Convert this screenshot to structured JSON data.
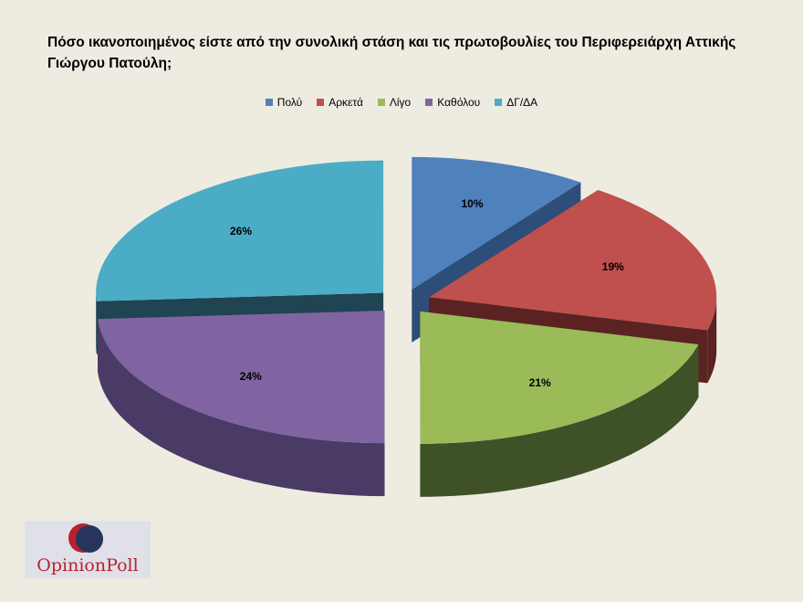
{
  "chart_data": {
    "type": "pie",
    "title": "Πόσο ικανοποιημένος είστε από την συνολική στάση και τις πρωτοβουλίες του Περιφερειάρχη Αττικής Γιώργου Πατούλη;",
    "categories": [
      "Πολύ",
      "Αρκετά",
      "Λίγο",
      "Καθόλου",
      "ΔΓ/ΔΑ"
    ],
    "values": [
      10,
      19,
      21,
      24,
      26
    ],
    "value_labels": [
      "10%",
      "19%",
      "21%",
      "24%",
      "26%"
    ],
    "colors": [
      "#4f81bd",
      "#c0504d",
      "#9bbb59",
      "#8064a2",
      "#4bacc6"
    ],
    "side_colors": [
      "#2c4e78",
      "#5a2220",
      "#3f5127",
      "#4a3a66",
      "#1f4452"
    ],
    "legend_position": "top",
    "exploded": true,
    "three_d": true
  },
  "logo": {
    "text": "OpinionPoll"
  }
}
